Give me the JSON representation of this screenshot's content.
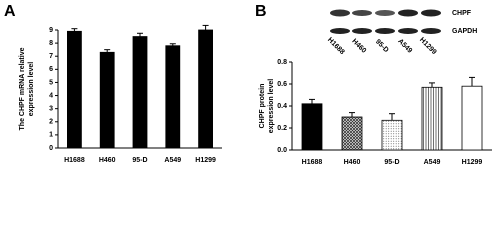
{
  "chart_data": [
    {
      "type": "bar",
      "panel": "A",
      "ylabel": [
        "The CHPF mRNA relative",
        "expression level"
      ],
      "categories": [
        "H1688",
        "H460",
        "95-D",
        "A549",
        "H1299"
      ],
      "values": [
        8.9,
        7.3,
        8.5,
        7.8,
        9.0
      ],
      "errors": [
        0.2,
        0.2,
        0.25,
        0.15,
        0.35
      ],
      "bar_styles": [
        "solid",
        "solid",
        "solid",
        "solid",
        "solid"
      ],
      "ylim": [
        0,
        9
      ],
      "yticks": [
        0,
        1,
        2,
        3,
        4,
        5,
        6,
        7,
        8,
        9
      ]
    },
    {
      "type": "bar",
      "panel": "B",
      "ylabel": [
        "CHPF protein",
        "expression level"
      ],
      "categories": [
        "H1688",
        "H460",
        "95-D",
        "A549",
        "H1299"
      ],
      "values": [
        0.42,
        0.3,
        0.27,
        0.57,
        0.58
      ],
      "errors": [
        0.04,
        0.04,
        0.06,
        0.04,
        0.08
      ],
      "bar_styles": [
        "solid",
        "crosshatch",
        "dotted",
        "striped",
        "open"
      ],
      "ylim": [
        0,
        0.8
      ],
      "yticks": [
        {
          "value": 0,
          "label": "0.0"
        },
        {
          "value": 0.2,
          "label": "0.2"
        },
        {
          "value": 0.4,
          "label": "0.4"
        },
        {
          "value": 0.6,
          "label": "0.6"
        },
        {
          "value": 0.8,
          "label": "0.8"
        }
      ],
      "blot_rows": [
        "CHPF",
        "GAPDH"
      ],
      "blot_lanes": [
        "H1688",
        "H460",
        "95-D",
        "A549",
        "H1299"
      ]
    }
  ]
}
